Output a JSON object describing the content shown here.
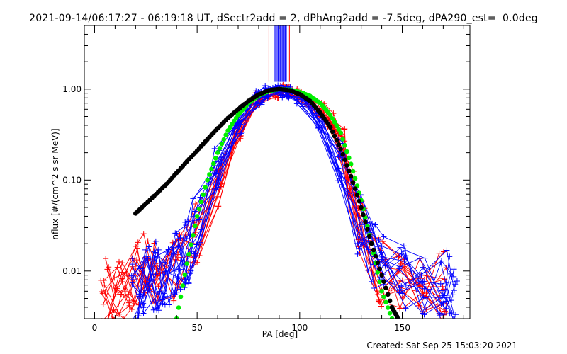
{
  "title": "2021-09-14/06:17:27 - 06:19:18 UT, dSectr2add = 2, dPhAng2add = -7.5deg, dPA290_est=  0.0deg",
  "footer": "Created: Sat Sep 25 15:03:20 2021",
  "chart_data": {
    "type": "line",
    "title": "2021-09-14/06:17:27 - 06:19:18 UT, dSectr2add = 2, dPhAng2add = -7.5deg, dPA290_est=  0.0deg",
    "xlabel": "PA [deg]",
    "ylabel": "nflux [#/(cm^2 s sr MeV)]",
    "xlim": [
      -5,
      183
    ],
    "ylim": [
      0.003,
      5
    ],
    "yscale": "log",
    "xticks": [
      0,
      50,
      100,
      150
    ],
    "xtick_labels": [
      "0",
      "50",
      "100",
      "150"
    ],
    "yticks": [
      0.01,
      0.1,
      1.0
    ],
    "ytick_labels": [
      "0.01",
      "0.10",
      "1.00"
    ],
    "grid": false,
    "colors": {
      "red": "#ff0000",
      "blue": "#0000ff",
      "green": "#00ee00",
      "black": "#000000"
    },
    "series": [
      {
        "color": "red",
        "marker": "plus",
        "kind": "bundle",
        "x": [
          5,
          10,
          15,
          20,
          25,
          30,
          40,
          50,
          60,
          70,
          80,
          90,
          95,
          100,
          110,
          115,
          120,
          125,
          130,
          140,
          150,
          160,
          170
        ],
        "y": [
          0.006,
          0.007,
          0.006,
          0.009,
          0.012,
          0.01,
          0.011,
          0.025,
          0.1,
          0.35,
          0.75,
          0.95,
          0.97,
          0.85,
          0.6,
          0.45,
          0.25,
          0.1,
          0.03,
          0.01,
          0.008,
          0.008,
          0.007
        ]
      },
      {
        "color": "blue",
        "marker": "plus",
        "kind": "bundle",
        "x": [
          20,
          25,
          30,
          35,
          40,
          45,
          50,
          60,
          70,
          80,
          85,
          90,
          95,
          100,
          110,
          120,
          130,
          135,
          140,
          150,
          160,
          170,
          175
        ],
        "y": [
          0.006,
          0.008,
          0.009,
          0.01,
          0.011,
          0.015,
          0.03,
          0.13,
          0.4,
          0.8,
          0.95,
          0.95,
          0.9,
          0.75,
          0.45,
          0.15,
          0.03,
          0.015,
          0.01,
          0.009,
          0.008,
          0.007,
          0.006
        ]
      },
      {
        "color": "green",
        "marker": "dot",
        "x": [
          40,
          45,
          50,
          55,
          60,
          65,
          70,
          75,
          80,
          85,
          90,
          95,
          100,
          105,
          110,
          115,
          120,
          125,
          130,
          135,
          140,
          145
        ],
        "y": [
          0.003,
          0.012,
          0.04,
          0.1,
          0.2,
          0.35,
          0.52,
          0.7,
          0.85,
          0.95,
          1.0,
          0.98,
          0.93,
          0.84,
          0.7,
          0.52,
          0.33,
          0.15,
          0.06,
          0.02,
          0.006,
          0.003
        ]
      },
      {
        "color": "black",
        "marker": "dot",
        "x": [
          20,
          25,
          30,
          35,
          40,
          45,
          50,
          55,
          60,
          65,
          70,
          75,
          80,
          85,
          90,
          95,
          100,
          105,
          110,
          115,
          120,
          125,
          130,
          135,
          140,
          145,
          148
        ],
        "y": [
          0.043,
          0.055,
          0.07,
          0.09,
          0.12,
          0.16,
          0.21,
          0.28,
          0.37,
          0.48,
          0.6,
          0.74,
          0.87,
          0.97,
          1.0,
          0.97,
          0.88,
          0.74,
          0.55,
          0.38,
          0.22,
          0.11,
          0.05,
          0.02,
          0.009,
          0.004,
          0.003
        ]
      }
    ],
    "annotations": [
      {
        "type": "vertical-lines",
        "color": "blue",
        "x_range": [
          87.5,
          93.5
        ],
        "y_from": 1.2
      },
      {
        "type": "vertical-lines",
        "color": "red",
        "x": [
          85,
          95
        ],
        "y_from": 1.2
      }
    ]
  }
}
